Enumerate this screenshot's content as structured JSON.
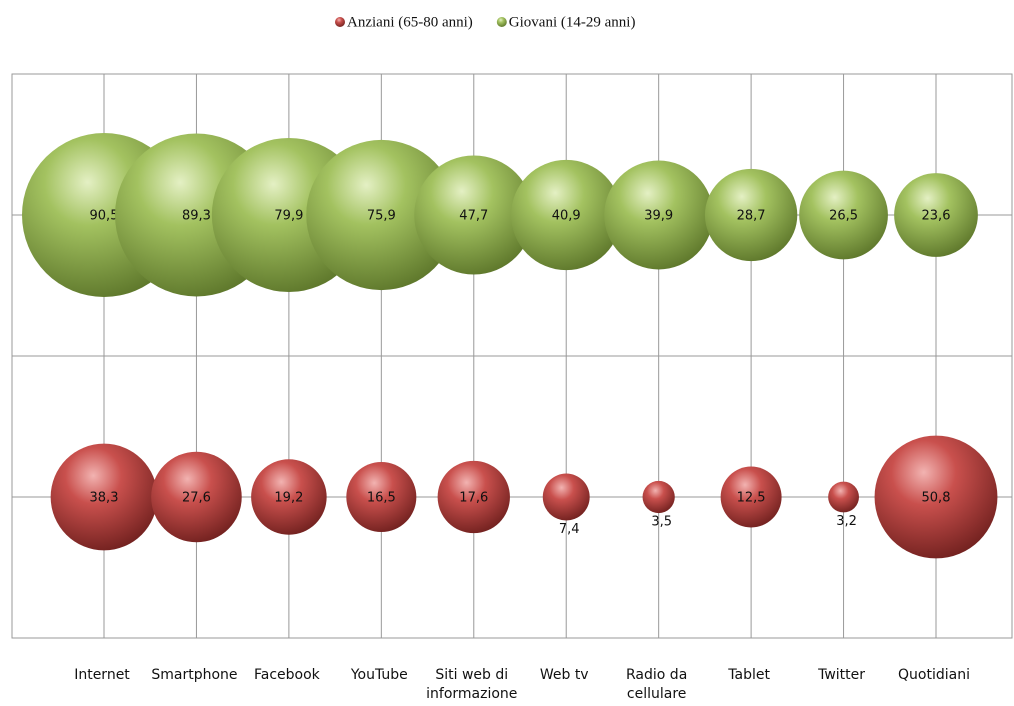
{
  "chart_data": {
    "type": "bubble",
    "categories": [
      "Internet",
      "Smartphone",
      "Facebook",
      "YouTube",
      "Siti web di informazione",
      "Web tv",
      "Radio da cellulare",
      "Tablet",
      "Twitter",
      "Quotidiani"
    ],
    "series": [
      {
        "name": "Anziani (65-80 anni)",
        "color": "#c0504d",
        "values": [
          38.3,
          27.6,
          19.2,
          16.5,
          17.6,
          7.4,
          3.5,
          12.5,
          3.2,
          50.8
        ],
        "value_labels": [
          "38,3",
          "27,6",
          "19,2",
          "16,5",
          "17,6",
          "7,4",
          "3,5",
          "12,5",
          "3,2",
          "50,8"
        ]
      },
      {
        "name": "Giovani (14-29 anni)",
        "color": "#9bbb59",
        "values": [
          90.5,
          89.3,
          79.9,
          75.9,
          47.7,
          40.9,
          39.9,
          28.7,
          26.5,
          23.6
        ],
        "value_labels": [
          "90,5",
          "89,3",
          "79,9",
          "75,9",
          "47,7",
          "40,9",
          "39,9",
          "28,7",
          "26,5",
          "23,6"
        ]
      }
    ],
    "legend": "top"
  }
}
